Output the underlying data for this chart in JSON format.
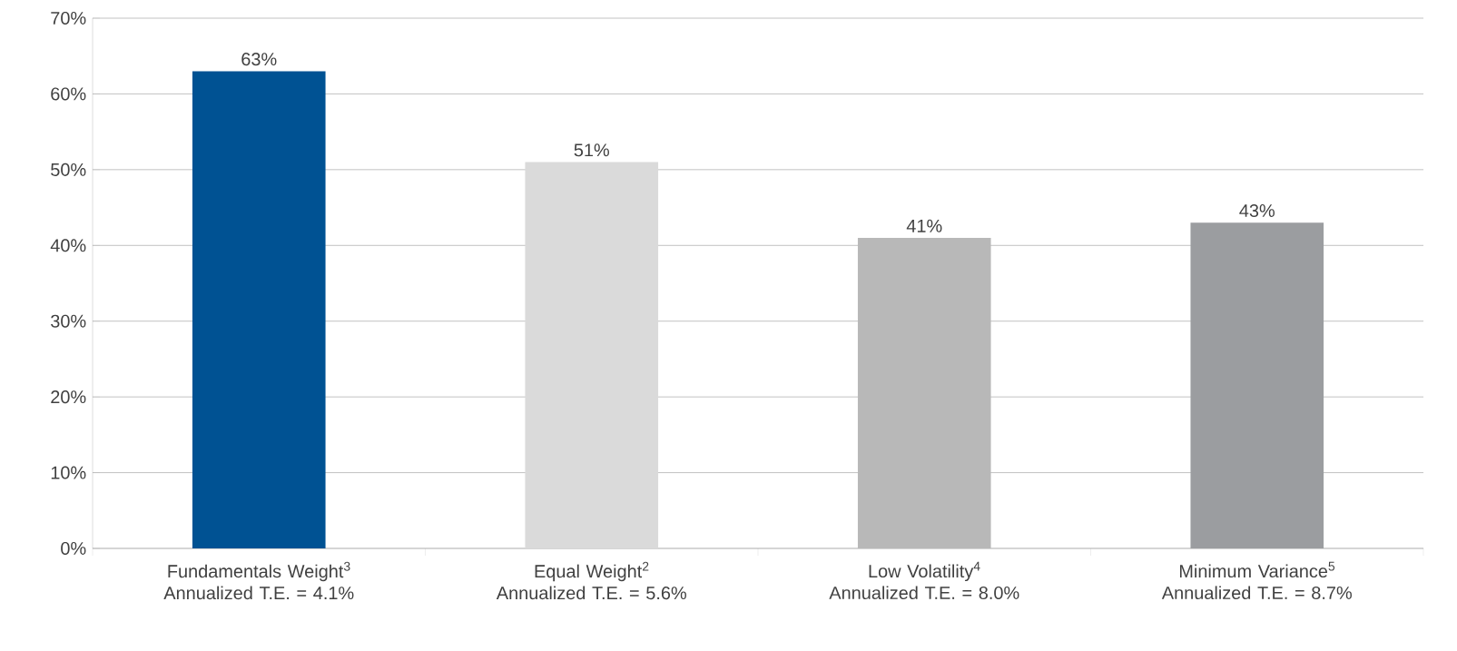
{
  "chart_data": {
    "type": "bar",
    "categories": [
      "Fundamentals Weight$^{3}$\nAnnualized T.E. = 4.1%",
      "Equal Weight$^{2}$\nAnnualized T.E. = 5.6%",
      "Low Volatility$^{4}$\nAnnualized T.E. = 8.0%",
      "Minimum Variance$^{5}$\nAnnualized T.E. = 8.7%"
    ],
    "values": [
      63,
      51,
      41,
      43
    ],
    "colors": [
      "#005293",
      "#dadada",
      "#b8b8b8",
      "#9b9da0"
    ],
    "value_labels": [
      "63%",
      "51%",
      "41%",
      "43%"
    ],
    "ylim": [
      0,
      70
    ],
    "yticks": [
      {
        "value": 0,
        "label": "0%"
      },
      {
        "value": 10,
        "label": "10%"
      },
      {
        "value": 20,
        "label": "20%"
      },
      {
        "value": 30,
        "label": "30%"
      },
      {
        "value": 40,
        "label": "40%"
      },
      {
        "value": 50,
        "label": "50%"
      },
      {
        "value": 60,
        "label": "60%"
      },
      {
        "value": 70,
        "label": "70%"
      }
    ],
    "grid": "y"
  }
}
